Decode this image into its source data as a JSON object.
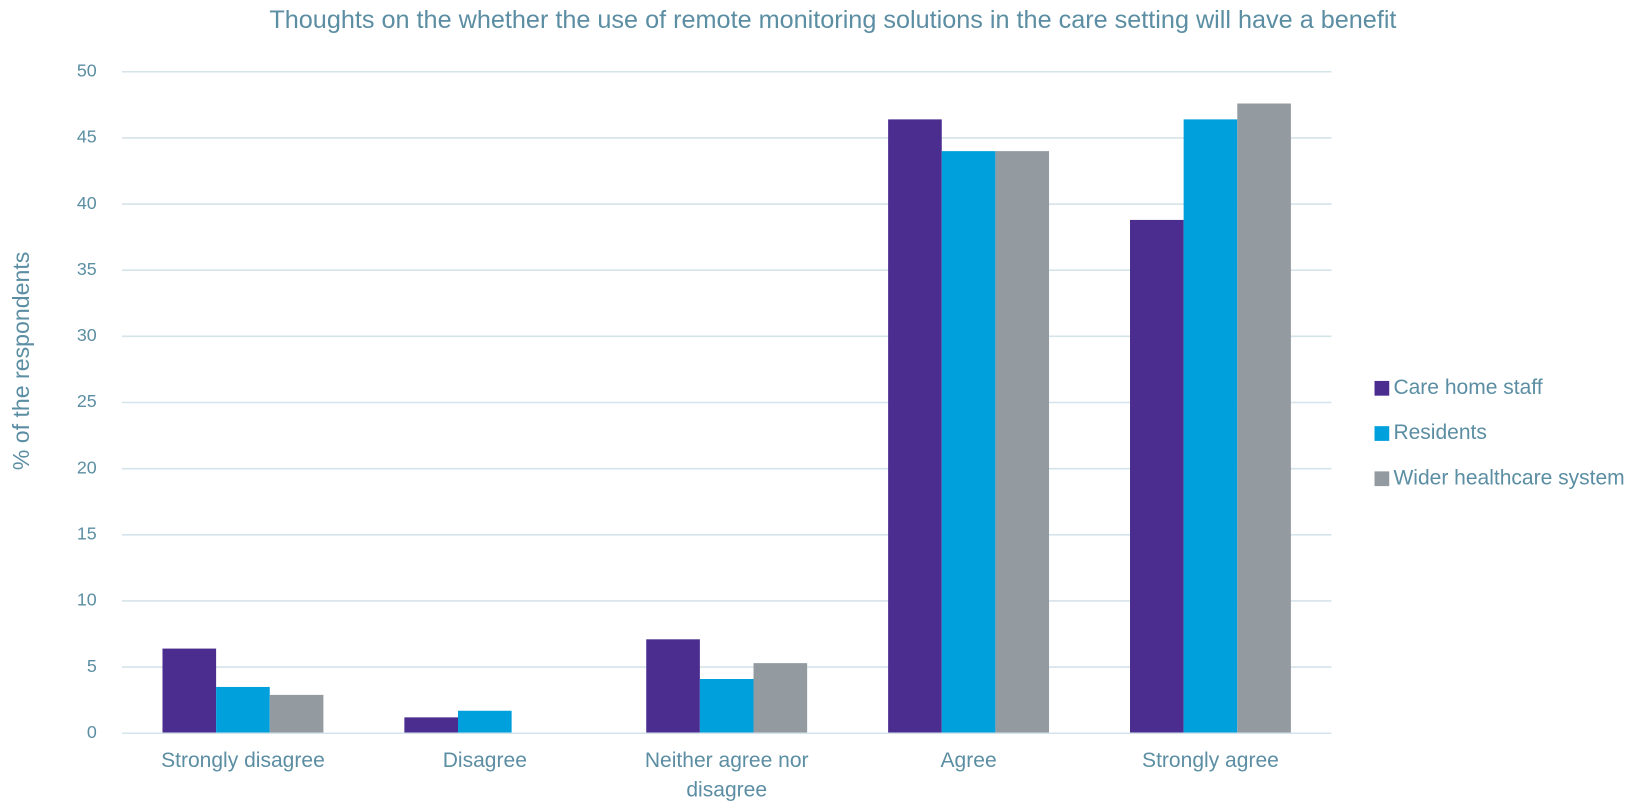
{
  "chart_data": {
    "type": "bar",
    "title": "Thoughts on the whether the use of remote monitoring solutions in the care setting will have a benefit",
    "y_label": "% of the respondents",
    "categories": [
      "Strongly disagree",
      "Disagree",
      "Neither agree nor disagree",
      "Agree",
      "Strongly agree"
    ],
    "series": [
      {
        "name": "Care home staff",
        "color": "#4b2d8f",
        "values": [
          6.4,
          1.2,
          7.1,
          46.4,
          38.8
        ]
      },
      {
        "name": "Residents",
        "color": "#00a0dc",
        "values": [
          3.5,
          1.7,
          4.1,
          44.0,
          46.4
        ]
      },
      {
        "name": "Wider healthcare system",
        "color": "#939ba1",
        "values": [
          2.9,
          0,
          5.3,
          44.0,
          47.6
        ]
      }
    ],
    "ylim": [
      0,
      50
    ],
    "yticks": [
      0,
      5,
      10,
      15,
      20,
      25,
      30,
      35,
      40,
      45,
      50
    ],
    "grid": true,
    "legend": "right"
  }
}
